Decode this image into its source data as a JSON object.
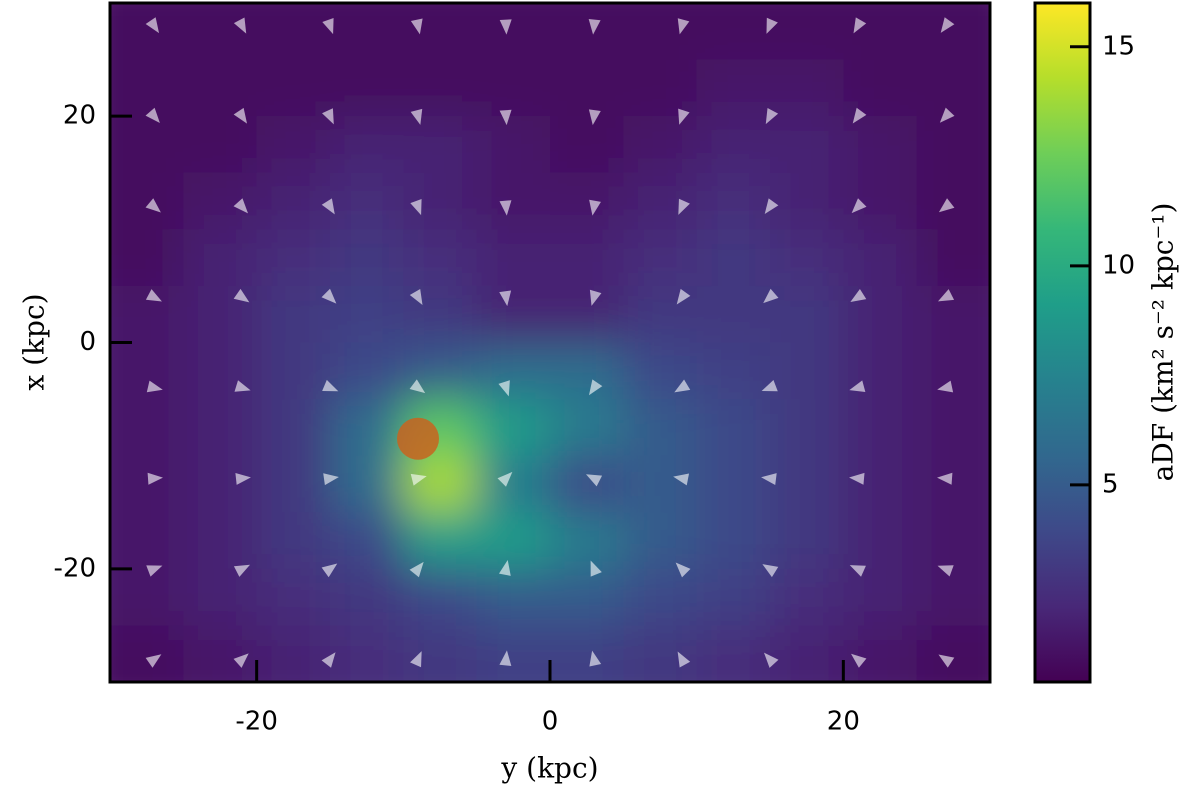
{
  "chart_data": {
    "type": "heatmap",
    "xlabel": "y (kpc)",
    "ylabel": "x (kpc)",
    "colorbar_label": "aDF (km² s⁻² kpc⁻¹)",
    "colormap": "viridis",
    "xlim": [
      -30,
      30
    ],
    "ylim": [
      -30,
      30
    ],
    "xticks": [
      -20,
      0,
      20
    ],
    "yticks": [
      -20,
      0,
      20
    ],
    "clim": [
      0.5,
      16
    ],
    "cticks": [
      5,
      10,
      15
    ],
    "z": [
      [
        1,
        1,
        1,
        1,
        1,
        1,
        1,
        1,
        1,
        1,
        1,
        1
      ],
      [
        1,
        1,
        1,
        1,
        1,
        1,
        1,
        1,
        1.5,
        1.5,
        1,
        1
      ],
      [
        1,
        1,
        1.5,
        2,
        2,
        1.5,
        1,
        1.5,
        2,
        2,
        1.5,
        1
      ],
      [
        1,
        1.5,
        2,
        2.5,
        2,
        1.5,
        1.5,
        2,
        2.5,
        2,
        1.5,
        1
      ],
      [
        1,
        2,
        2.5,
        3,
        2.5,
        2,
        2,
        2.5,
        3,
        2.5,
        2,
        1
      ],
      [
        1.5,
        2,
        3,
        3.5,
        3,
        2,
        2,
        3,
        3,
        3,
        2,
        1.5
      ],
      [
        1.5,
        2,
        3,
        4,
        5,
        6,
        6,
        4,
        3.5,
        3,
        2,
        1.5
      ],
      [
        1.5,
        2,
        3,
        6,
        12,
        9,
        7,
        5,
        4,
        3,
        2,
        1.5
      ],
      [
        1.5,
        2,
        3,
        6,
        14,
        7,
        4,
        5,
        4,
        3,
        2,
        1.5
      ],
      [
        1.5,
        2,
        3,
        4,
        9,
        9,
        7,
        5,
        4,
        3,
        2,
        1.5
      ],
      [
        1.5,
        2,
        2.5,
        3,
        4,
        5,
        5,
        4,
        3.5,
        2.5,
        2,
        1.5
      ],
      [
        1,
        1.5,
        2,
        2.5,
        3,
        3.5,
        3.5,
        3,
        2.5,
        2,
        1.5,
        1
      ]
    ],
    "quiver": {
      "y": [
        -27,
        -21,
        -15,
        -9,
        -3,
        3,
        9,
        15,
        21,
        27
      ],
      "x": [
        28,
        20,
        12,
        4,
        -4,
        -12,
        -20,
        -28
      ],
      "angle": [
        [
          -56,
          -62,
          -70,
          -78,
          -87,
          -96,
          -105,
          -113,
          -120,
          -126
        ],
        [
          -49,
          -56,
          -65,
          -75,
          -86,
          -98,
          -108,
          -118,
          -126,
          -133
        ],
        [
          -40,
          -48,
          -58,
          -70,
          -85,
          -100,
          -114,
          -126,
          -135,
          -142
        ],
        [
          -28,
          -35,
          -45,
          -60,
          -82,
          -106,
          -126,
          -139,
          -148,
          -153
        ],
        [
          -13,
          -17,
          -23,
          -37,
          -72,
          -124,
          -149,
          -159,
          -165,
          -168
        ],
        [
          4,
          6,
          8,
          14,
          45,
          153,
          169,
          173,
          175,
          176
        ],
        [
          21,
          27,
          36,
          51,
          79,
          112,
          135,
          148,
          156,
          160
        ],
        [
          35,
          42,
          52,
          66,
          84,
          102,
          119,
          132,
          141,
          147
        ]
      ],
      "color": "#ffffff"
    },
    "point": {
      "y": -9,
      "x": -8.5,
      "color": "#c8641e"
    }
  }
}
